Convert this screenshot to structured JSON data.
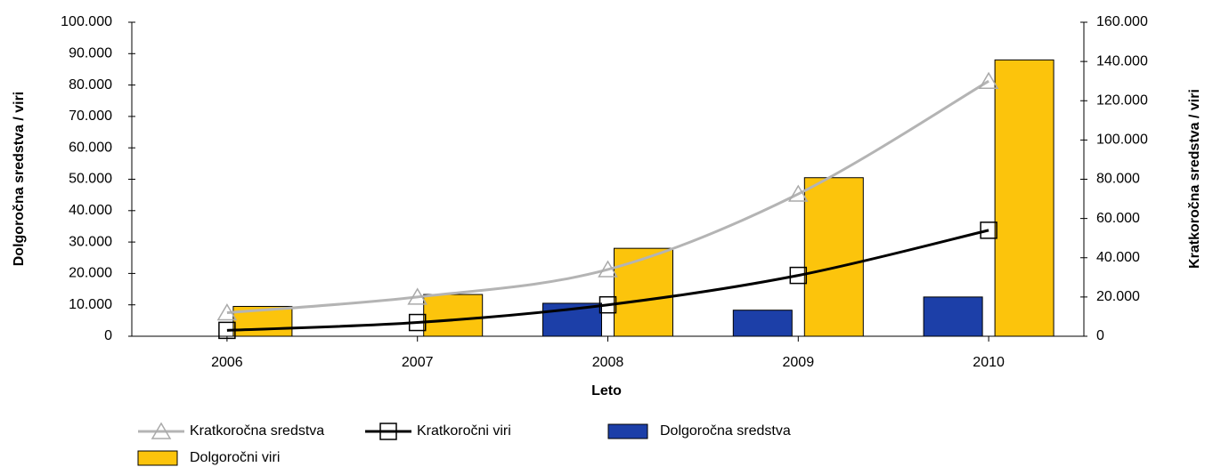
{
  "chart_data": {
    "type": "bar",
    "x_label": "Leto",
    "y_label": "Dolgoročna sredstva / viri",
    "y2_label": "Kratkoročna sredstva / viri",
    "categories": [
      "2006",
      "2007",
      "2008",
      "2009",
      "2010"
    ],
    "ylim": [
      0,
      100000
    ],
    "yticks": [
      0,
      {
        "value": 10000,
        "label": "10.000"
      },
      {
        "value": 20000,
        "label": "20.000"
      },
      {
        "value": 30000,
        "label": "30.000"
      },
      {
        "value": 40000,
        "label": "40.000"
      },
      {
        "value": 50000,
        "label": "50.000"
      },
      {
        "value": 60000,
        "label": "60.000"
      },
      {
        "value": 70000,
        "label": "70.000"
      },
      {
        "value": 80000,
        "label": "80.000"
      },
      {
        "value": 90000,
        "label": "90.000"
      },
      {
        "value": 100000,
        "label": "100.000"
      }
    ],
    "y2lim": [
      0,
      160000
    ],
    "y2ticks": [
      0,
      {
        "value": 20000,
        "label": "20.000"
      },
      {
        "value": 40000,
        "label": "40.000"
      },
      {
        "value": 60000,
        "label": "60.000"
      },
      {
        "value": 80000,
        "label": "80.000"
      },
      {
        "value": 100000,
        "label": "100.000"
      },
      {
        "value": 120000,
        "label": "120.000"
      },
      {
        "value": 140000,
        "label": "140.000"
      },
      {
        "value": 160000,
        "label": "160.000"
      }
    ],
    "series": [
      {
        "name": "Kratkoročna sredstva",
        "type": "line",
        "axis": "y2",
        "marker": "triangle",
        "color": "#b4b4b4",
        "values": [
          12000,
          20000,
          34000,
          72500,
          130000
        ]
      },
      {
        "name": "Kratkoročni viri",
        "type": "line",
        "axis": "y2",
        "marker": "square",
        "color": "#000000",
        "values": [
          3000,
          7000,
          16000,
          31000,
          54000
        ]
      },
      {
        "name": "Dolgoročna sredstva",
        "type": "bar",
        "color": "#1c3fa8",
        "values": [
          0,
          0,
          10500,
          8300,
          12500
        ]
      },
      {
        "name": "Dolgoročni viri",
        "type": "bar",
        "color": "#fcc40c",
        "values": [
          9500,
          13300,
          28000,
          50500,
          88000
        ]
      }
    ]
  }
}
